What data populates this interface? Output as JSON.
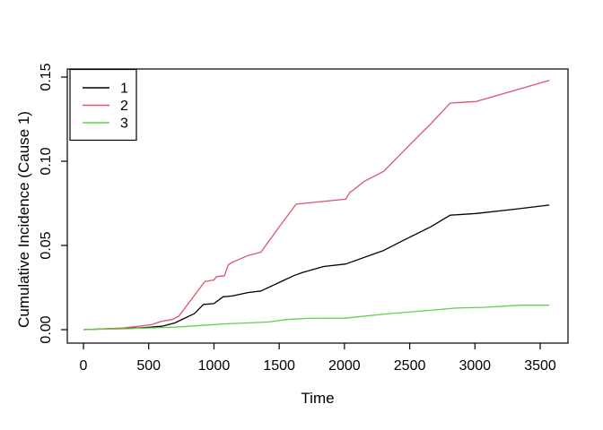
{
  "figure": {
    "background": "#FFFFFF",
    "foreground": "#000000"
  },
  "chart_data": {
    "type": "line",
    "title": "",
    "xlabel": "Time",
    "ylabel": "Cumulative Incidence (Cause 1)",
    "xlim": [
      0,
      3500
    ],
    "ylim": [
      0,
      0.15
    ],
    "grid": false,
    "x_ticks": [
      0,
      500,
      1000,
      1500,
      2000,
      2500,
      3000,
      3500
    ],
    "x_tick_labels": [
      "0",
      "500",
      "1000",
      "1500",
      "2000",
      "2500",
      "3000",
      "3500"
    ],
    "y_ticks": [
      0,
      0.05,
      0.1,
      0.15
    ],
    "y_tick_labels": [
      "0.00",
      "0.05",
      "0.10",
      "0.15"
    ],
    "legend": {
      "position": "topleft",
      "entries": [
        {
          "label": "1",
          "color": "#000000"
        },
        {
          "label": "2",
          "color": "#DF536B"
        },
        {
          "label": "3",
          "color": "#61D04F"
        }
      ]
    },
    "series": [
      {
        "name": "1",
        "color": "#000000",
        "points": [
          [
            0,
            0
          ],
          [
            150,
            0.0005
          ],
          [
            430,
            0.001
          ],
          [
            600,
            0.002
          ],
          [
            700,
            0.004
          ],
          [
            850,
            0.0095
          ],
          [
            920,
            0.015
          ],
          [
            1000,
            0.0155
          ],
          [
            1070,
            0.0195
          ],
          [
            1140,
            0.02
          ],
          [
            1260,
            0.022
          ],
          [
            1360,
            0.023
          ],
          [
            1500,
            0.028
          ],
          [
            1610,
            0.032
          ],
          [
            1680,
            0.034
          ],
          [
            1840,
            0.0375
          ],
          [
            2010,
            0.039
          ],
          [
            2300,
            0.047
          ],
          [
            2450,
            0.053
          ],
          [
            2660,
            0.061
          ],
          [
            2810,
            0.068
          ],
          [
            3010,
            0.069
          ],
          [
            3300,
            0.0715
          ],
          [
            3570,
            0.074
          ]
        ]
      },
      {
        "name": "2",
        "color": "#DF536B",
        "points": [
          [
            0,
            0
          ],
          [
            150,
            0.0005
          ],
          [
            300,
            0.001
          ],
          [
            430,
            0.002
          ],
          [
            520,
            0.003
          ],
          [
            600,
            0.005
          ],
          [
            680,
            0.006
          ],
          [
            730,
            0.008
          ],
          [
            930,
            0.0285
          ],
          [
            1000,
            0.0295
          ],
          [
            1020,
            0.0315
          ],
          [
            1080,
            0.032
          ],
          [
            1110,
            0.0385
          ],
          [
            1140,
            0.04
          ],
          [
            1260,
            0.044
          ],
          [
            1360,
            0.046
          ],
          [
            1490,
            0.06
          ],
          [
            1630,
            0.0745
          ],
          [
            2010,
            0.0775
          ],
          [
            2040,
            0.0815
          ],
          [
            2070,
            0.083
          ],
          [
            2150,
            0.088
          ],
          [
            2300,
            0.094
          ],
          [
            2580,
            0.116
          ],
          [
            2660,
            0.122
          ],
          [
            2810,
            0.1345
          ],
          [
            3010,
            0.1355
          ],
          [
            3570,
            0.148
          ]
        ]
      },
      {
        "name": "3",
        "color": "#61D04F",
        "points": [
          [
            0,
            0
          ],
          [
            300,
            0.0005
          ],
          [
            500,
            0.001
          ],
          [
            700,
            0.0015
          ],
          [
            900,
            0.0025
          ],
          [
            1100,
            0.0035
          ],
          [
            1260,
            0.004
          ],
          [
            1420,
            0.0046
          ],
          [
            1560,
            0.006
          ],
          [
            1720,
            0.0067
          ],
          [
            2000,
            0.0068
          ],
          [
            2340,
            0.0095
          ],
          [
            2690,
            0.0117
          ],
          [
            2850,
            0.0128
          ],
          [
            3080,
            0.0133
          ],
          [
            3350,
            0.0145
          ],
          [
            3570,
            0.0145
          ]
        ]
      }
    ]
  }
}
